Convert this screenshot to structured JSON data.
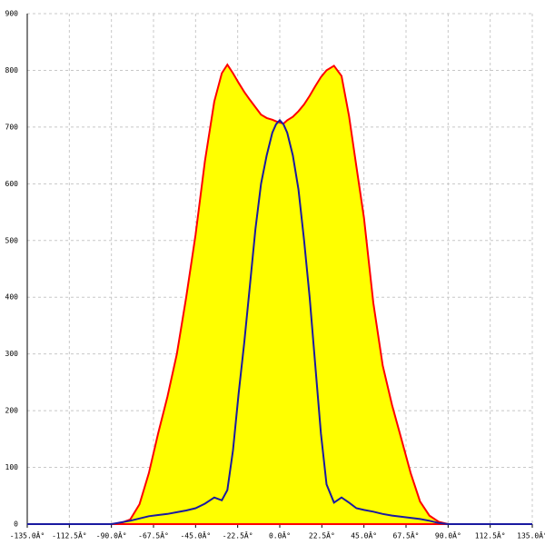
{
  "chart_data": {
    "type": "area",
    "x": [
      -135,
      -90,
      -85,
      -80,
      -75,
      -70,
      -65,
      -60,
      -55,
      -50,
      -45,
      -40,
      -35,
      -31,
      -28,
      -25,
      -22,
      -19,
      -16,
      -13,
      -10,
      -7,
      -4,
      -2,
      0,
      2,
      4,
      7,
      10,
      13,
      16,
      19,
      22,
      25,
      29,
      33,
      37,
      41,
      45,
      50,
      55,
      60,
      65,
      70,
      75,
      80,
      85,
      90,
      135
    ],
    "series": [
      {
        "color": "#ff0000",
        "fill": "#ffff00",
        "values": [
          0,
          0,
          2,
          8,
          35,
          90,
          160,
          225,
          300,
          400,
          510,
          640,
          745,
          795,
          810,
          795,
          778,
          762,
          748,
          735,
          722,
          716,
          713,
          710,
          708,
          706,
          712,
          718,
          728,
          740,
          755,
          772,
          788,
          800,
          808,
          790,
          720,
          630,
          540,
          390,
          280,
          210,
          150,
          90,
          40,
          15,
          4,
          0,
          0
        ]
      },
      {
        "color": "#1a1aa0",
        "fill": null,
        "values": [
          0,
          0,
          3,
          6,
          10,
          14,
          16,
          18,
          21,
          24,
          28,
          36,
          47,
          42,
          60,
          130,
          230,
          320,
          420,
          520,
          600,
          650,
          690,
          705,
          712,
          705,
          690,
          650,
          590,
          500,
          400,
          280,
          160,
          70,
          38,
          47,
          38,
          28,
          25,
          22,
          18,
          15,
          13,
          11,
          9,
          6,
          2,
          0,
          0
        ]
      }
    ],
    "xlim": [
      -135,
      135
    ],
    "xticks": [
      {
        "value": -135,
        "label": "-135.0Â°"
      },
      {
        "value": -112.5,
        "label": "-112.5Â°"
      },
      {
        "value": -90,
        "label": "-90.0Â°"
      },
      {
        "value": -67.5,
        "label": "-67.5Â°"
      },
      {
        "value": -45,
        "label": "-45.0Â°"
      },
      {
        "value": -22.5,
        "label": "-22.5Â°"
      },
      {
        "value": 0,
        "label": "0.0Â°"
      },
      {
        "value": 22.5,
        "label": "22.5Â°"
      },
      {
        "value": 45,
        "label": "45.0Â°"
      },
      {
        "value": 67.5,
        "label": "67.5Â°"
      },
      {
        "value": 90,
        "label": "90.0Â°"
      },
      {
        "value": 112.5,
        "label": "112.5Â°"
      },
      {
        "value": 135,
        "label": "135.0Â°"
      }
    ],
    "ylim": [
      0,
      900
    ],
    "yticks": [
      0,
      100,
      200,
      300,
      400,
      500,
      600,
      700,
      800,
      900
    ],
    "grid": true
  }
}
